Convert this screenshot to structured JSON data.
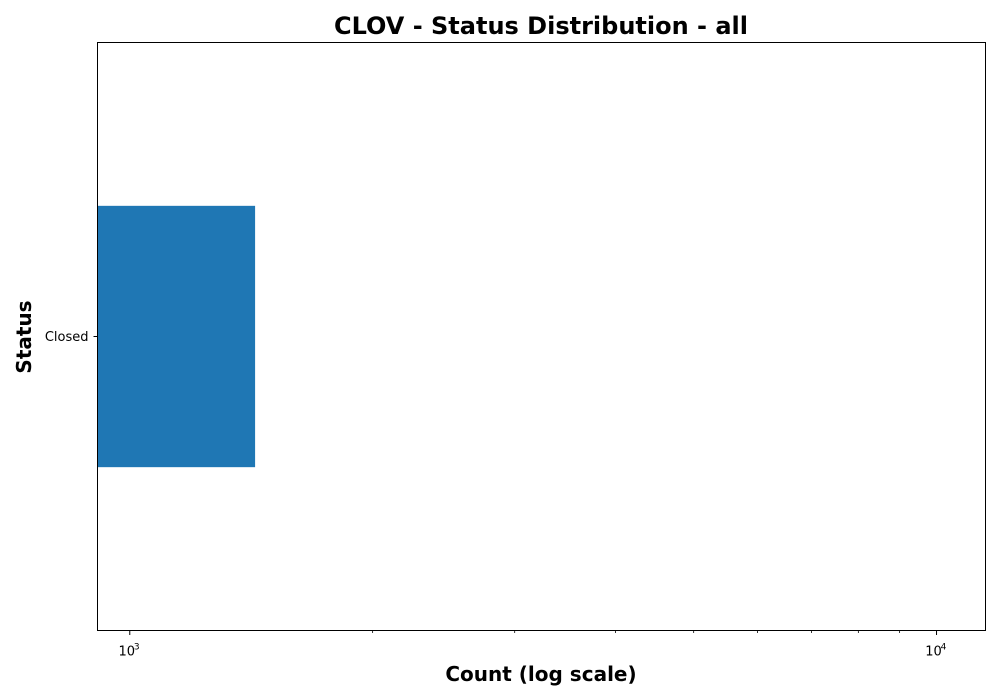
{
  "chart_data": {
    "type": "bar",
    "orientation": "horizontal",
    "title": "CLOV - Status Distribution - all",
    "xlabel": "Count (log scale)",
    "ylabel": "Status",
    "x_scale": "log",
    "xlim": [
      912,
      11500
    ],
    "x_major_ticks": [
      {
        "value": 1000,
        "base": "10",
        "exponent": "3"
      },
      {
        "value": 10000,
        "base": "10",
        "exponent": "4"
      }
    ],
    "categories": [
      "Closed"
    ],
    "values": [
      1430
    ],
    "bar_color": "#1f77b4",
    "grid": false,
    "legend": "none"
  }
}
